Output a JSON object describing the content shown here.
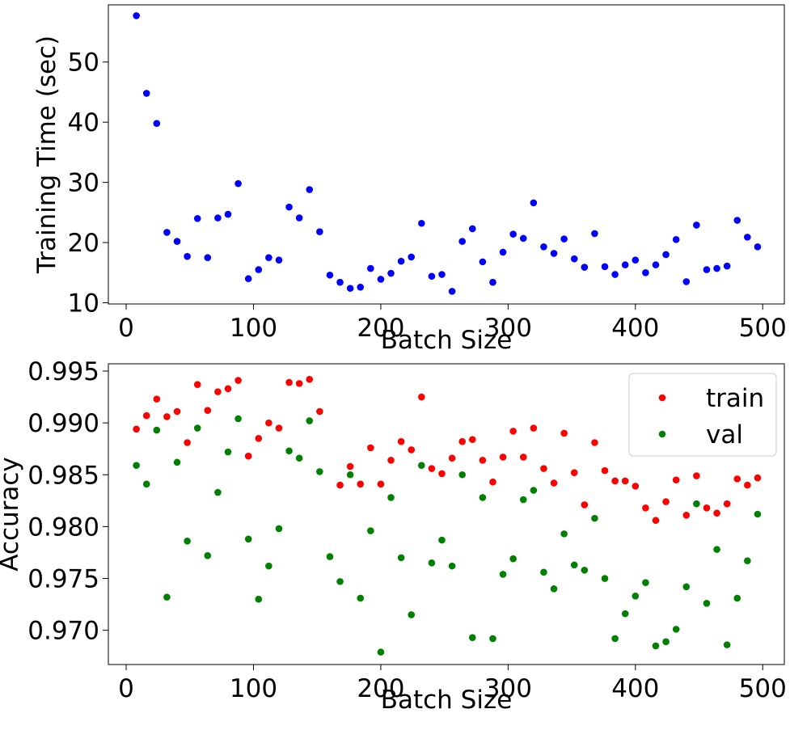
{
  "chart_data": [
    {
      "type": "scatter",
      "xlabel": "Batch Size",
      "ylabel": "Training Time (sec)",
      "xlim": [
        -14,
        517
      ],
      "ylim": [
        9.8,
        59.5
      ],
      "xticks": [
        0,
        100,
        200,
        300,
        400,
        500
      ],
      "yticks": [
        10,
        20,
        30,
        40,
        50
      ],
      "grid": false,
      "legend": null,
      "series": [
        {
          "color": "#0000ff",
          "x": [
            8,
            16,
            24,
            32,
            40,
            48,
            56,
            64,
            72,
            80,
            88,
            96,
            104,
            112,
            120,
            128,
            136,
            144,
            152,
            160,
            168,
            176,
            184,
            192,
            200,
            208,
            216,
            224,
            232,
            240,
            248,
            256,
            264,
            272,
            280,
            288,
            296,
            304,
            312,
            320,
            328,
            336,
            344,
            352,
            360,
            368,
            376,
            384,
            392,
            400,
            408,
            416,
            424,
            432,
            440,
            448,
            456,
            464,
            472,
            480,
            488,
            496
          ],
          "y": [
            57.7,
            44.8,
            39.8,
            21.7,
            20.2,
            17.7,
            24.0,
            17.5,
            24.1,
            24.7,
            29.8,
            14.0,
            15.5,
            17.5,
            17.1,
            25.9,
            24.1,
            28.8,
            21.8,
            14.6,
            13.4,
            12.4,
            12.6,
            15.7,
            13.9,
            14.9,
            16.9,
            17.6,
            23.2,
            14.4,
            14.7,
            11.9,
            20.2,
            22.3,
            16.8,
            13.4,
            18.4,
            21.4,
            20.7,
            26.6,
            19.3,
            18.2,
            20.6,
            17.3,
            15.9,
            21.5,
            16.0,
            14.7,
            16.3,
            17.1,
            15.0,
            16.3,
            18.0,
            20.5,
            13.5,
            22.9,
            15.5,
            15.7,
            16.1,
            23.7,
            20.9,
            19.3
          ]
        }
      ]
    },
    {
      "type": "scatter",
      "xlabel": "Batch Size",
      "ylabel": "Accuracy",
      "xlim": [
        -14,
        517
      ],
      "ylim": [
        0.9667,
        0.9957
      ],
      "xticks": [
        0,
        100,
        200,
        300,
        400,
        500
      ],
      "yticks": [
        0.97,
        0.975,
        0.98,
        0.985,
        0.99,
        0.995
      ],
      "yticklabels": [
        "0.970",
        "0.975",
        "0.980",
        "0.985",
        "0.990",
        "0.995"
      ],
      "grid": false,
      "legend": "top-right",
      "series": [
        {
          "name": "train",
          "color": "#ff0000",
          "x": [
            8,
            16,
            24,
            32,
            40,
            48,
            56,
            64,
            72,
            80,
            88,
            96,
            104,
            112,
            120,
            128,
            136,
            144,
            152,
            168,
            176,
            184,
            192,
            200,
            208,
            216,
            224,
            232,
            240,
            248,
            256,
            264,
            272,
            280,
            288,
            296,
            304,
            312,
            320,
            328,
            336,
            344,
            352,
            360,
            368,
            376,
            384,
            392,
            400,
            408,
            416,
            424,
            432,
            440,
            448,
            456,
            464,
            472,
            480,
            488,
            496
          ],
          "y": [
            0.9894,
            0.9907,
            0.9923,
            0.9906,
            0.9911,
            0.9881,
            0.9937,
            0.9912,
            0.993,
            0.9933,
            0.9941,
            0.9868,
            0.9885,
            0.99,
            0.9895,
            0.9939,
            0.9938,
            0.9942,
            0.9911,
            0.984,
            0.9858,
            0.9841,
            0.9876,
            0.9841,
            0.9864,
            0.9882,
            0.9874,
            0.9925,
            0.9856,
            0.9851,
            0.9866,
            0.9882,
            0.9884,
            0.9864,
            0.9843,
            0.9867,
            0.9892,
            0.9867,
            0.9895,
            0.9856,
            0.9842,
            0.989,
            0.9852,
            0.9821,
            0.9881,
            0.9854,
            0.9844,
            0.9844,
            0.9839,
            0.9818,
            0.9806,
            0.9824,
            0.9845,
            0.9811,
            0.9849,
            0.9818,
            0.9813,
            0.9822,
            0.9846,
            0.984,
            0.9847
          ]
        },
        {
          "name": "val",
          "color": "#008000",
          "x": [
            8,
            16,
            24,
            32,
            40,
            48,
            56,
            64,
            72,
            80,
            88,
            96,
            104,
            112,
            120,
            128,
            136,
            144,
            152,
            160,
            168,
            176,
            184,
            192,
            200,
            208,
            216,
            224,
            232,
            240,
            248,
            256,
            264,
            272,
            280,
            288,
            296,
            304,
            312,
            320,
            328,
            336,
            344,
            352,
            360,
            368,
            376,
            384,
            392,
            400,
            408,
            416,
            424,
            432,
            440,
            448,
            456,
            464,
            472,
            480,
            488,
            496
          ],
          "y": [
            0.9859,
            0.9841,
            0.9893,
            0.9732,
            0.9862,
            0.9786,
            0.9895,
            0.9772,
            0.9833,
            0.9872,
            0.9904,
            0.9788,
            0.973,
            0.9762,
            0.9798,
            0.9873,
            0.9866,
            0.9902,
            0.9853,
            0.9771,
            0.9747,
            0.985,
            0.9731,
            0.9796,
            0.9679,
            0.9828,
            0.977,
            0.9715,
            0.9859,
            0.9765,
            0.9787,
            0.9762,
            0.985,
            0.9693,
            0.9828,
            0.9692,
            0.9754,
            0.9769,
            0.9826,
            0.9835,
            0.9756,
            0.974,
            0.9793,
            0.9763,
            0.9758,
            0.9808,
            0.975,
            0.9692,
            0.9716,
            0.9733,
            0.9746,
            0.9685,
            0.9689,
            0.9701,
            0.9742,
            0.9822,
            0.9726,
            0.9778,
            0.9686,
            0.9731,
            0.9767,
            0.9812
          ]
        }
      ]
    }
  ]
}
